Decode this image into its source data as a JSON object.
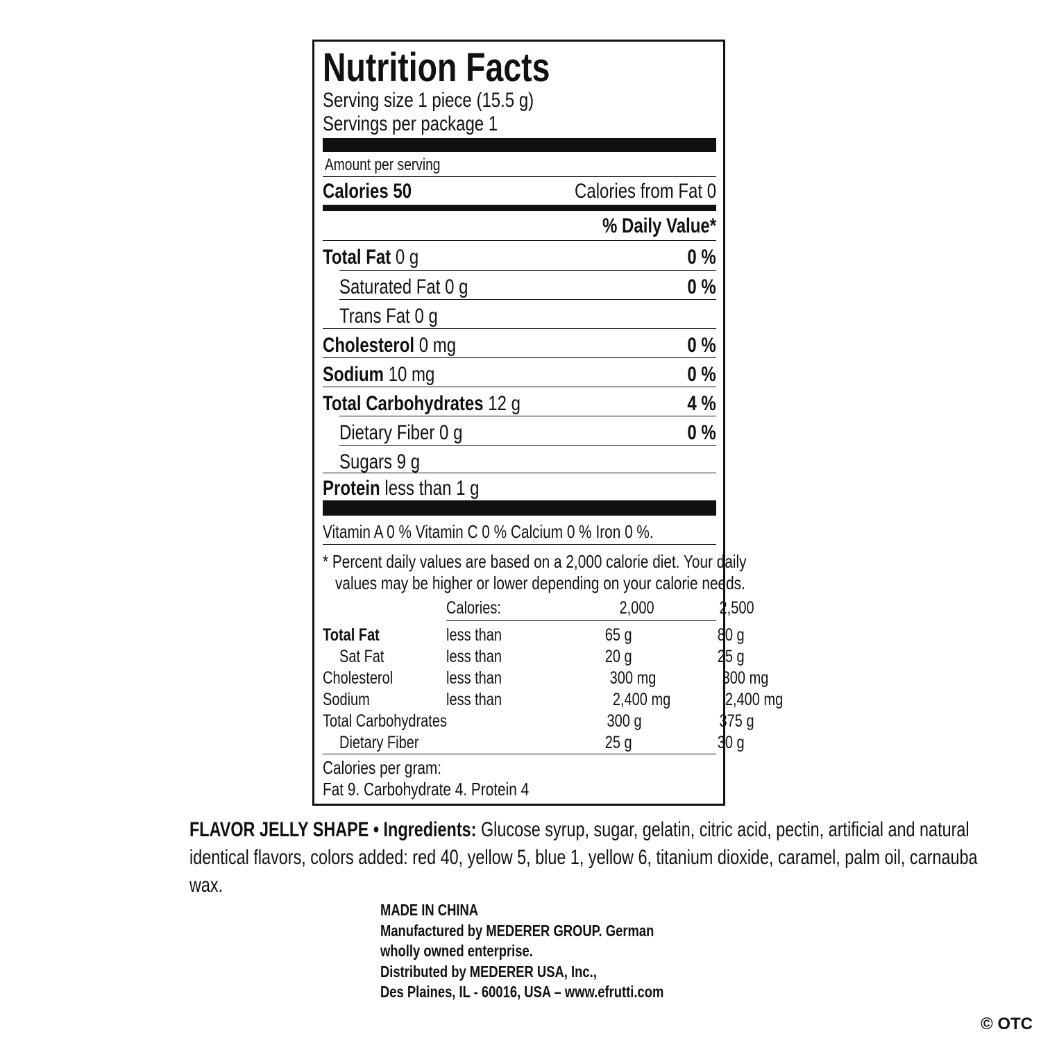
{
  "label": {
    "title": "Nutrition Facts",
    "serving_size": "Serving size 1 piece (15.5 g)",
    "servings_per_package": "Servings per package 1",
    "amount_per_serving": "Amount per serving",
    "calories_label": "Calories 50",
    "calories_from_fat": "Calories from Fat 0",
    "daily_value_header": "% Daily Value*",
    "nutrients": [
      {
        "name": "Total Fat",
        "amount": "0 g",
        "dv": "0 %"
      },
      {
        "name": "Saturated Fat",
        "amount": "0 g",
        "dv": "0 %"
      },
      {
        "name": "Trans Fat",
        "amount": "0 g",
        "dv": ""
      },
      {
        "name": "Cholesterol",
        "amount": "0 mg",
        "dv": "0 %"
      },
      {
        "name": "Sodium",
        "amount": "10 mg",
        "dv": "0 %"
      },
      {
        "name": "Total Carbohydrates",
        "amount": "12 g",
        "dv": "4 %"
      },
      {
        "name": "Dietary Fiber",
        "amount": "0 g",
        "dv": "0 %"
      },
      {
        "name": "Sugars",
        "amount": "9 g",
        "dv": ""
      },
      {
        "name": "Protein",
        "amount": "less than 1 g",
        "dv": ""
      }
    ],
    "vitamins": "Vitamin A 0 % Vitamin C 0 % Calcium 0 % Iron 0 %.",
    "footnote_1": "*  Percent daily values are based on a 2,000 calorie diet. Your daily",
    "footnote_2": "values may be higher or lower depending on your calorie needs.",
    "table": {
      "header": [
        "",
        "Calories:",
        "2,000",
        "2,500"
      ],
      "rows": [
        [
          "Total Fat",
          "less than",
          "65 g",
          "80 g"
        ],
        [
          "Sat Fat",
          "less than",
          "20 g",
          "25 g"
        ],
        [
          "Cholesterol",
          "less than",
          "300 mg",
          "300 mg"
        ],
        [
          "Sodium",
          "less than",
          "2,400 mg",
          "2,400 mg"
        ],
        [
          "Total Carbohydrates",
          "",
          "300 g",
          "375 g"
        ],
        [
          "Dietary Fiber",
          "",
          "25 g",
          "30 g"
        ]
      ]
    },
    "calories_per_gram": "Calories per gram:",
    "calories_per_gram_values": "Fat 9. Carbohydrate 4. Protein 4"
  },
  "ingredients": {
    "product": "FLAVOR JELLY SHAPE",
    "separator": " • ",
    "label": "Ingredients:",
    "text": " Glucose syrup, sugar, gelatin, citric acid, pectin, artificial and natural identical flavors, colors added: red 40, yellow 5,  blue 1,  yellow 6,  titanium dioxide, caramel, palm  oil, carnauba wax."
  },
  "manufacturer": [
    "MADE IN CHINA",
    "Manufactured by MEDERER GROUP. German",
    "wholly owned enterprise.",
    "Distributed by MEDERER USA, Inc.,",
    "Des Plaines, IL - 60016, USA – www.efrutti.com"
  ],
  "watermark": "© OTC"
}
